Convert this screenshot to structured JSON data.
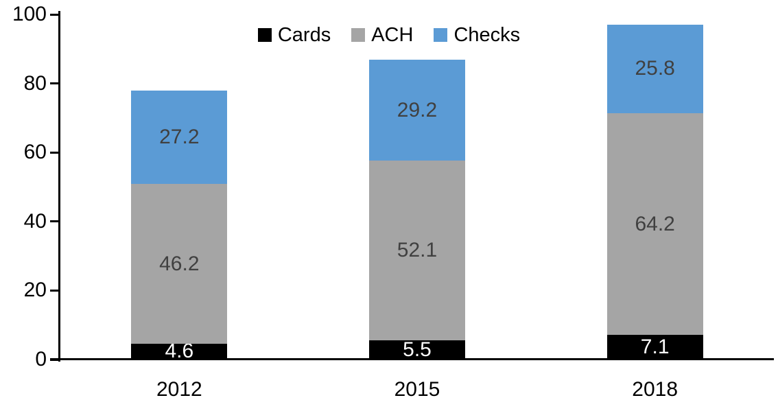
{
  "chart_data": {
    "type": "bar",
    "stacked": true,
    "title": "",
    "xlabel": "",
    "ylabel": "",
    "categories": [
      "2012",
      "2015",
      "2018"
    ],
    "series": [
      {
        "name": "Cards",
        "color": "#000000",
        "label_color": "#ffffff",
        "values": [
          4.6,
          5.5,
          7.1
        ]
      },
      {
        "name": "ACH",
        "color": "#A5A5A5",
        "label_color": "#404040",
        "values": [
          46.2,
          52.1,
          64.2
        ]
      },
      {
        "name": "Checks",
        "color": "#5B9BD5",
        "label_color": "#404040",
        "values": [
          27.2,
          29.2,
          25.8
        ]
      }
    ],
    "stack_totals": [
      78.0,
      86.8,
      97.1
    ],
    "yticks": [
      0,
      20,
      40,
      60,
      80,
      100
    ],
    "ylim": [
      0,
      100
    ],
    "grid": false,
    "legend_position": "top-center",
    "axis_color": "#000000",
    "background_color": "#ffffff"
  }
}
